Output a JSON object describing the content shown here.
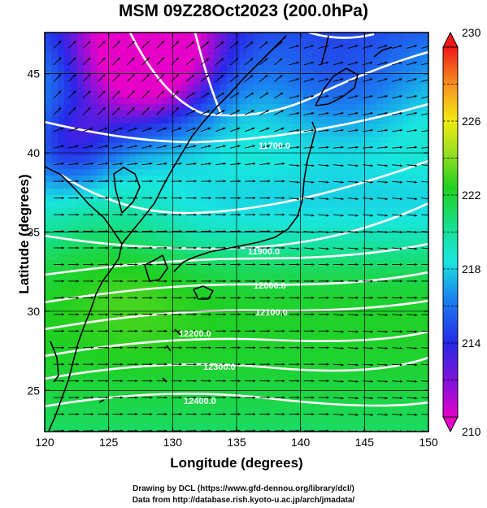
{
  "title": "MSM 09Z28Oct2023 (200.0hPa)",
  "chart_data": {
    "type": "heatmap",
    "title": "MSM 09Z28Oct2023 (200.0hPa)",
    "xlabel": "Longitude (degrees)",
    "ylabel": "Latitude  (degrees)",
    "xlim": [
      120,
      150
    ],
    "ylim": [
      22.4,
      47.6
    ],
    "x_ticks": [
      "120",
      "125",
      "130",
      "135",
      "140",
      "145",
      "150"
    ],
    "y_ticks": [
      "25",
      "30",
      "35",
      "40",
      "45"
    ],
    "grid": true,
    "colorbar": {
      "position": "right",
      "min": 210,
      "max": 230,
      "ticks": [
        "210",
        "214",
        "218",
        "222",
        "226",
        "230"
      ],
      "extends": "both"
    },
    "contour_labels": [
      "11700.0",
      "11900.0",
      "12000.0",
      "12100.0",
      "12200.0",
      "12300.0",
      "12400.0"
    ],
    "overlay": "wind vectors"
  },
  "credits": {
    "line1": "Drawing by DCL (https://www.gfd-dennou.org/library/dcl/)",
    "line2": "Data from http://database.rish.kyoto-u.ac.jp/arch/jmadata/"
  }
}
